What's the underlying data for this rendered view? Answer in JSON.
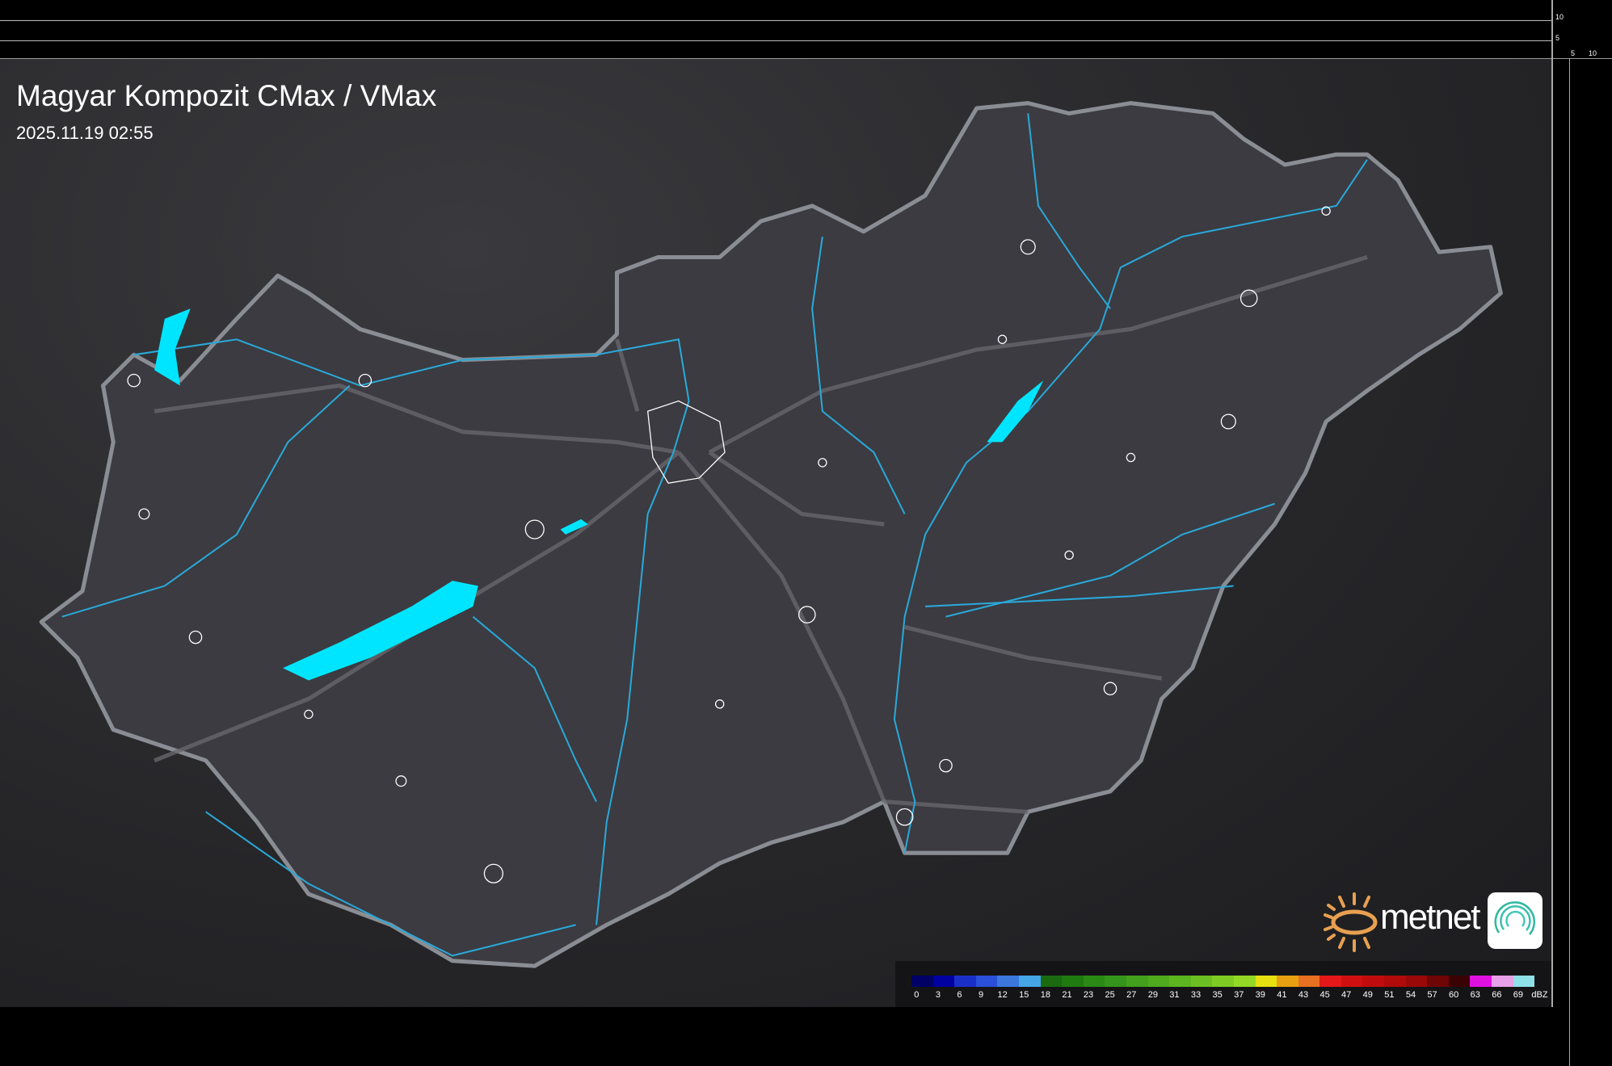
{
  "title": "Magyar Kompozit CMax / VMax",
  "timestamp": "2025.11.19 02:55",
  "scale_ticks": {
    "vertical": [
      "10",
      "5"
    ],
    "horizontal": [
      "5",
      "10"
    ]
  },
  "logo": {
    "brand": "metnet",
    "sun_color": "#e8a050",
    "icon_color": "#2fb8a0"
  },
  "colors": {
    "background": "#262629",
    "country_fill": "#3b3b41",
    "border": "#8a8d93",
    "rivers": "#2aa8d8",
    "lakes": "#00e5ff",
    "roads": "#6a6a70",
    "settlements": "#ffffff"
  },
  "legend": {
    "unit": "dBZ",
    "labels": [
      "0",
      "3",
      "6",
      "9",
      "12",
      "15",
      "18",
      "21",
      "23",
      "25",
      "27",
      "29",
      "31",
      "33",
      "35",
      "37",
      "39",
      "41",
      "43",
      "45",
      "47",
      "49",
      "51",
      "54",
      "57",
      "60",
      "63",
      "66",
      "69"
    ],
    "colors": [
      "#000066",
      "#0000a0",
      "#1a2fc8",
      "#2a4fd8",
      "#3a78dc",
      "#44a6e6",
      "#1a6a10",
      "#1f7a10",
      "#2a8a15",
      "#35951a",
      "#42a01c",
      "#4faa1e",
      "#5cb51f",
      "#6cbf22",
      "#7ecb24",
      "#94d826",
      "#e6e010",
      "#e8a010",
      "#e87020",
      "#e41818",
      "#d01010",
      "#c00c0c",
      "#b00a0a",
      "#9a0808",
      "#700505",
      "#3a0202",
      "#e010e0",
      "#e8a0e8",
      "#90e0e8"
    ]
  }
}
